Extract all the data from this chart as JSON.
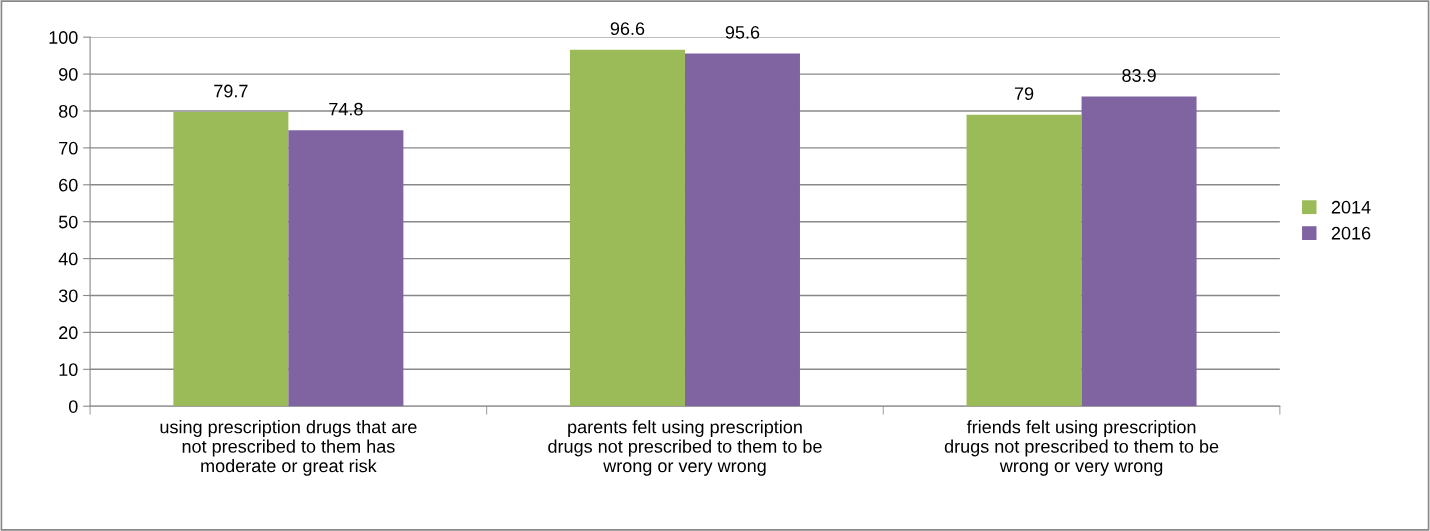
{
  "chart_data": {
    "type": "bar",
    "categories": [
      "using prescription drugs that are\nnot prescribed to them has\nmoderate or great risk",
      "parents felt using prescription\ndrugs not prescribed to them to be\nwrong or very wrong",
      "friends felt using prescription\ndrugs not prescribed to them to be\nwrong or very wrong"
    ],
    "series": [
      {
        "name": "2014",
        "color": "#9bbb59",
        "values": [
          79.7,
          96.6,
          79
        ]
      },
      {
        "name": "2016",
        "color": "#8064a2",
        "values": [
          74.8,
          95.6,
          83.9
        ]
      }
    ],
    "ylim": [
      0,
      100
    ],
    "yticks": [
      0,
      10,
      20,
      30,
      40,
      50,
      60,
      70,
      80,
      90,
      100
    ],
    "grid": "y",
    "legend": "right",
    "data_labels": true
  }
}
